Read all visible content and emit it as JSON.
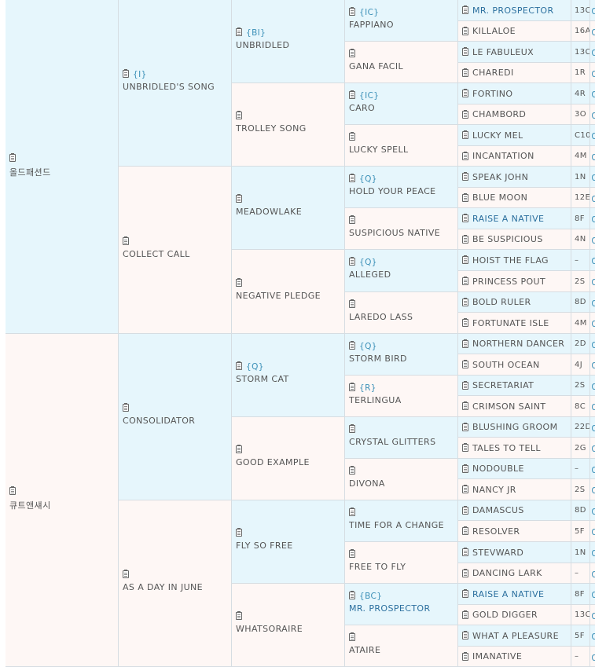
{
  "pedigree": {
    "g1": [
      {
        "name": "올드패션드",
        "badge": "",
        "shade": "blue"
      },
      {
        "name": "큐트앤섀시",
        "badge": "",
        "shade": "pink"
      }
    ],
    "g2": [
      {
        "name": "UNBRIDLED'S SONG",
        "badge": "{I}",
        "shade": "blue"
      },
      {
        "name": "COLLECT CALL",
        "badge": "",
        "shade": "pink"
      },
      {
        "name": "CONSOLIDATOR",
        "badge": "",
        "shade": "blue"
      },
      {
        "name": "AS A DAY IN JUNE",
        "badge": "",
        "shade": "pink"
      }
    ],
    "g3": [
      {
        "name": "UNBRIDLED",
        "badge": "{BI}",
        "shade": "blue"
      },
      {
        "name": "TROLLEY SONG",
        "badge": "",
        "shade": "pink"
      },
      {
        "name": "MEADOWLAKE",
        "badge": "",
        "shade": "blue"
      },
      {
        "name": "NEGATIVE PLEDGE",
        "badge": "",
        "shade": "pink"
      },
      {
        "name": "STORM CAT",
        "badge": "{Q}",
        "shade": "blue"
      },
      {
        "name": "GOOD EXAMPLE",
        "badge": "",
        "shade": "pink"
      },
      {
        "name": "FLY SO FREE",
        "badge": "",
        "shade": "blue"
      },
      {
        "name": "WHATSORAIRE",
        "badge": "",
        "shade": "pink"
      }
    ],
    "g4": [
      {
        "name": "FAPPIANO",
        "badge": "{IC}",
        "shade": "blue",
        "link": false
      },
      {
        "name": "GANA FACIL",
        "badge": "",
        "shade": "pink",
        "link": false
      },
      {
        "name": "CARO",
        "badge": "{IC}",
        "shade": "blue",
        "link": false
      },
      {
        "name": "LUCKY SPELL",
        "badge": "",
        "shade": "pink",
        "link": false
      },
      {
        "name": "HOLD YOUR PEACE",
        "badge": "{Q}",
        "shade": "blue",
        "link": false
      },
      {
        "name": "SUSPICIOUS NATIVE",
        "badge": "",
        "shade": "pink",
        "link": false
      },
      {
        "name": "ALLEGED",
        "badge": "{Q}",
        "shade": "blue",
        "link": false
      },
      {
        "name": "LAREDO LASS",
        "badge": "",
        "shade": "pink",
        "link": false
      },
      {
        "name": "STORM BIRD",
        "badge": "{Q}",
        "shade": "blue",
        "link": false
      },
      {
        "name": "TERLINGUA",
        "badge": "{R}",
        "shade": "pink",
        "link": false
      },
      {
        "name": "CRYSTAL GLITTERS",
        "badge": "",
        "shade": "blue",
        "link": false
      },
      {
        "name": "DIVONA",
        "badge": "",
        "shade": "pink",
        "link": false
      },
      {
        "name": "TIME FOR A CHANGE",
        "badge": "",
        "shade": "blue",
        "link": false
      },
      {
        "name": "FREE TO FLY",
        "badge": "",
        "shade": "pink",
        "link": false
      },
      {
        "name": "MR. PROSPECTOR",
        "badge": "{BC}",
        "shade": "blue",
        "link": true
      },
      {
        "name": "ATAIRE",
        "badge": "",
        "shade": "pink",
        "link": false
      }
    ],
    "g5": [
      {
        "name": "MR. PROSPECTOR",
        "code": "13C",
        "shade": "blue",
        "link": true
      },
      {
        "name": "KILLALOE",
        "code": "16A",
        "shade": "pink",
        "link": false
      },
      {
        "name": "LE FABULEUX",
        "code": "13C",
        "shade": "blue",
        "link": false
      },
      {
        "name": "CHAREDI",
        "code": "1R",
        "shade": "pink",
        "link": false
      },
      {
        "name": "FORTINO",
        "code": "4R",
        "shade": "blue",
        "link": false
      },
      {
        "name": "CHAMBORD",
        "code": "3O",
        "shade": "pink",
        "link": false
      },
      {
        "name": "LUCKY MEL",
        "code": "C10",
        "shade": "blue",
        "link": false
      },
      {
        "name": "INCANTATION",
        "code": "4M",
        "shade": "pink",
        "link": false
      },
      {
        "name": "SPEAK JOHN",
        "code": "1N",
        "shade": "blue",
        "link": false
      },
      {
        "name": "BLUE MOON",
        "code": "12E",
        "shade": "pink",
        "link": false
      },
      {
        "name": "RAISE A NATIVE",
        "code": "8F",
        "shade": "blue",
        "link": true
      },
      {
        "name": "BE SUSPICIOUS",
        "code": "4N",
        "shade": "pink",
        "link": false
      },
      {
        "name": "HOIST THE FLAG",
        "code": "–",
        "shade": "blue",
        "link": false
      },
      {
        "name": "PRINCESS POUT",
        "code": "2S",
        "shade": "pink",
        "link": false
      },
      {
        "name": "BOLD RULER",
        "code": "8D",
        "shade": "blue",
        "link": false
      },
      {
        "name": "FORTUNATE ISLE",
        "code": "4M",
        "shade": "pink",
        "link": false
      },
      {
        "name": "NORTHERN DANCER",
        "code": "2D",
        "shade": "blue",
        "link": false
      },
      {
        "name": "SOUTH OCEAN",
        "code": "4J",
        "shade": "pink",
        "link": false
      },
      {
        "name": "SECRETARIAT",
        "code": "2S",
        "shade": "blue",
        "link": false
      },
      {
        "name": "CRIMSON SAINT",
        "code": "8C",
        "shade": "pink",
        "link": false
      },
      {
        "name": "BLUSHING GROOM",
        "code": "22D",
        "shade": "blue",
        "link": false
      },
      {
        "name": "TALES TO TELL",
        "code": "2G",
        "shade": "pink",
        "link": false
      },
      {
        "name": "NODOUBLE",
        "code": "–",
        "shade": "blue",
        "link": false
      },
      {
        "name": "NANCY JR",
        "code": "2S",
        "shade": "pink",
        "link": false
      },
      {
        "name": "DAMASCUS",
        "code": "8D",
        "shade": "blue",
        "link": false
      },
      {
        "name": "RESOLVER",
        "code": "5F",
        "shade": "pink",
        "link": false
      },
      {
        "name": "STEVWARD",
        "code": "1N",
        "shade": "blue",
        "link": false
      },
      {
        "name": "DANCING LARK",
        "code": "–",
        "shade": "pink",
        "link": false
      },
      {
        "name": "RAISE A NATIVE",
        "code": "8F",
        "shade": "blue",
        "link": true
      },
      {
        "name": "GOLD DIGGER",
        "code": "13C",
        "shade": "pink",
        "link": false
      },
      {
        "name": "WHAT A PLEASURE",
        "code": "5F",
        "shade": "blue",
        "link": false
      },
      {
        "name": "IMANATIVE",
        "code": "–",
        "shade": "pink",
        "link": false
      }
    ],
    "icons": {
      "doc": "clipboard-icon",
      "edge": "arrow-icon"
    },
    "colors": {
      "blue": "#e6f6fc",
      "pink": "#fef7f5",
      "badge": "#3a8fb7",
      "link": "#2b6f9e"
    }
  }
}
